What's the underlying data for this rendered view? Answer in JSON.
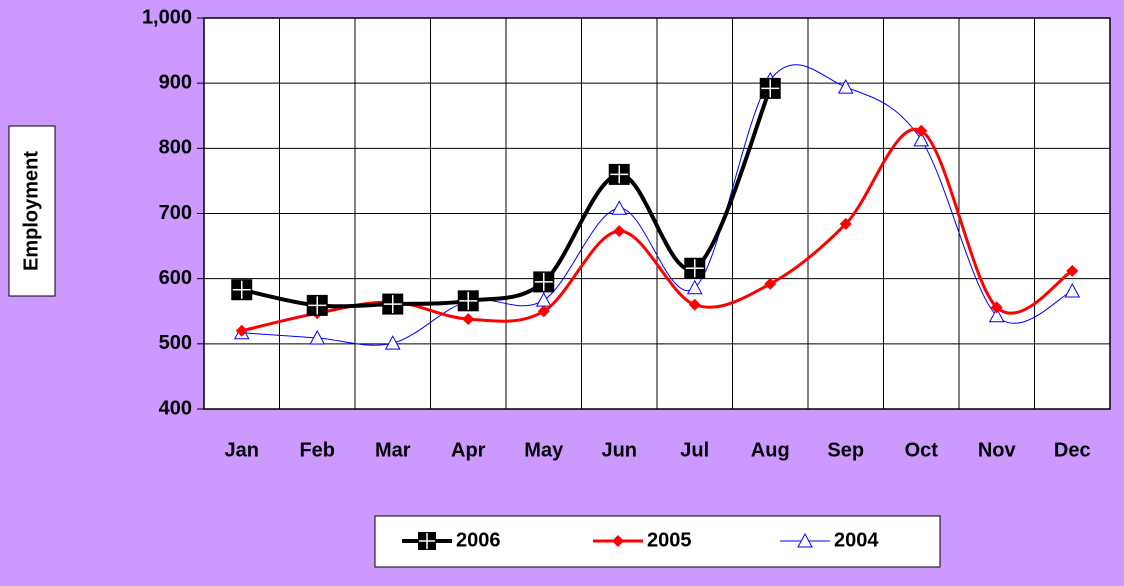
{
  "chart_data": {
    "type": "line",
    "y_label": "Employment",
    "categories": [
      "Jan",
      "Feb",
      "Mar",
      "Apr",
      "May",
      "Jun",
      "Jul",
      "Aug",
      "Sep",
      "Oct",
      "Nov",
      "Dec"
    ],
    "series": [
      {
        "name": "2006",
        "color": "#000000",
        "values": [
          583,
          559,
          561,
          566,
          595,
          760,
          616,
          892,
          null,
          null,
          null,
          null
        ]
      },
      {
        "name": "2005",
        "color": "#ff0000",
        "values": [
          520,
          547,
          564,
          538,
          550,
          673,
          560,
          592,
          684,
          827,
          556,
          612
        ]
      },
      {
        "name": "2004",
        "color": "#0000ff",
        "values": [
          517,
          509,
          501,
          566,
          567,
          708,
          586,
          905,
          894,
          813,
          543,
          581
        ]
      }
    ],
    "ylim": [
      400,
      1000
    ],
    "yticks": [
      400,
      500,
      600,
      700,
      800,
      900,
      {
        "value": 1000,
        "label": "1,000"
      }
    ],
    "grid": true
  }
}
